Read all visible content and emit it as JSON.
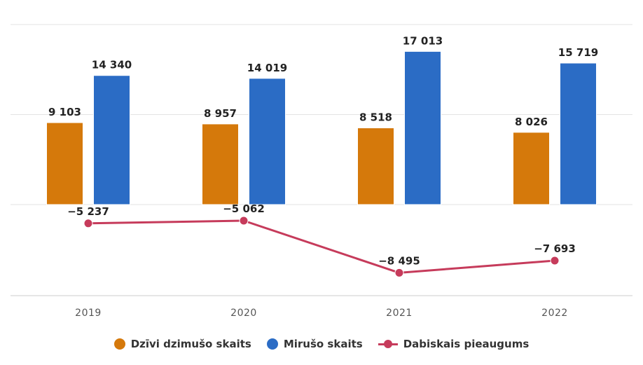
{
  "chart_data": {
    "type": "bar+line",
    "categories": [
      "2019",
      "2020",
      "2021",
      "2022"
    ],
    "series": [
      {
        "name": "Dzīvi dzimušo skaits",
        "type": "bar",
        "color": "#d5790b",
        "values": [
          9103,
          8957,
          8518,
          8026
        ],
        "labels": [
          "9 103",
          "8 957",
          "8 518",
          "8 026"
        ]
      },
      {
        "name": "Mirušo skaits",
        "type": "bar",
        "color": "#2b6cc5",
        "values": [
          14340,
          14019,
          17013,
          15719
        ],
        "labels": [
          "14 340",
          "14 019",
          "17 013",
          "15 719"
        ]
      },
      {
        "name": "Dabiskais pieaugums",
        "type": "line",
        "color": "#c63b5b",
        "values": [
          -5237,
          -5062,
          -8495,
          -7693
        ],
        "labels": [
          "−5 237",
          "−5 062",
          "−8 495",
          "−7 693"
        ]
      }
    ],
    "bar_ylim": [
      0,
      20000
    ],
    "line_ylim": [
      -10000,
      -4000
    ],
    "grid": true,
    "legend_position": "bottom-center"
  }
}
